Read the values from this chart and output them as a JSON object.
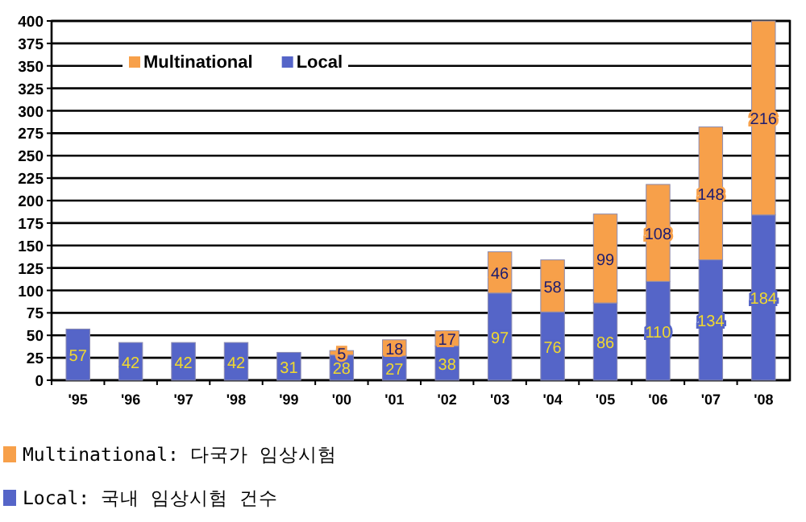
{
  "chart_data": {
    "type": "bar",
    "stacked": true,
    "categories": [
      "'95",
      "'96",
      "'97",
      "'98",
      "'99",
      "'00",
      "'01",
      "'02",
      "'03",
      "'04",
      "'05",
      "'06",
      "'07",
      "'08"
    ],
    "series": [
      {
        "name": "Local",
        "color": "#5565c8",
        "values": [
          57,
          42,
          42,
          42,
          31,
          28,
          27,
          38,
          97,
          76,
          86,
          110,
          134,
          184
        ]
      },
      {
        "name": "Multinational",
        "color": "#f7a04a",
        "values": [
          null,
          null,
          null,
          null,
          null,
          5,
          18,
          17,
          46,
          58,
          99,
          108,
          148,
          216
        ]
      }
    ],
    "ylim": [
      0,
      400
    ],
    "yticks": [
      0,
      25,
      50,
      75,
      100,
      125,
      150,
      175,
      200,
      225,
      250,
      275,
      300,
      325,
      350,
      375,
      400
    ],
    "grid": "y",
    "legend": "top left",
    "data_labels": true,
    "annotations": [
      "Multinational: 다국가 임상시험",
      "Local: 국내 임상시험 건수"
    ]
  }
}
